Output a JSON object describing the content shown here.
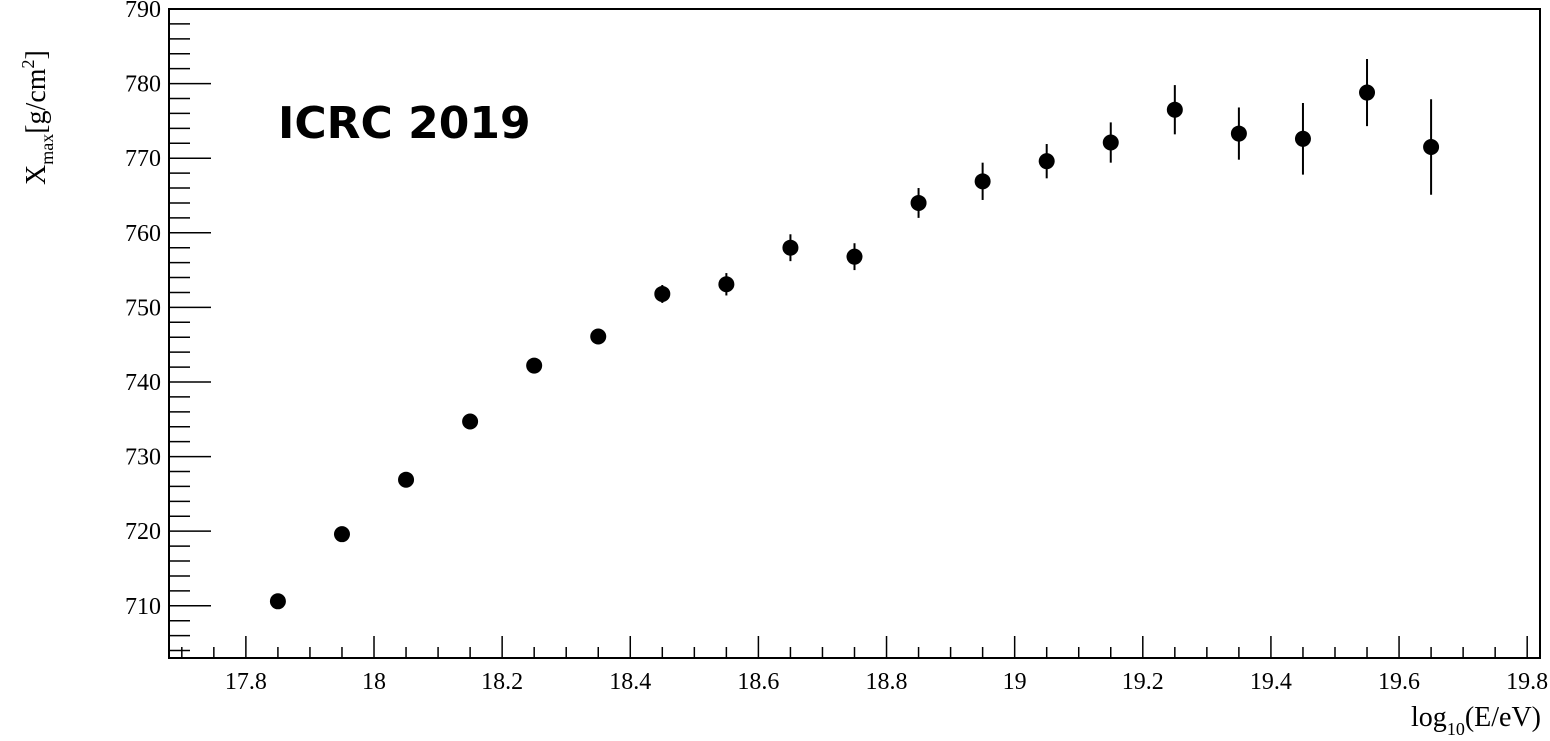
{
  "chart_data": {
    "type": "scatter",
    "annotation": "ICRC 2019",
    "xlabel": {
      "main": "log",
      "sub": "10",
      "rest": "(E/eV)"
    },
    "ylabel": {
      "main": "X",
      "sub": "max",
      "rest": "[g/cm",
      "sup": "2",
      "end": "]"
    },
    "xlim": [
      17.68,
      19.82
    ],
    "ylim": [
      703,
      790
    ],
    "xticks": [
      17.8,
      18.0,
      18.2,
      18.4,
      18.6,
      18.8,
      19.0,
      19.2,
      19.4,
      19.6,
      19.8
    ],
    "xtick_labels": [
      "17.8",
      "18",
      "18.2",
      "18.4",
      "18.6",
      "18.8",
      "19",
      "19.2",
      "19.4",
      "19.6",
      "19.8"
    ],
    "yticks": [
      710,
      720,
      730,
      740,
      750,
      760,
      770,
      780,
      790
    ],
    "ytick_labels": [
      "710",
      "720",
      "730",
      "740",
      "750",
      "760",
      "770",
      "780",
      "790"
    ],
    "grid": false,
    "marker_color": "#000000",
    "series": [
      {
        "x": [
          17.85,
          17.95,
          18.05,
          18.15,
          18.25,
          18.35,
          18.45,
          18.55,
          18.65,
          18.75,
          18.85,
          18.95,
          19.05,
          19.15,
          19.25,
          19.35,
          19.45,
          19.55,
          19.65
        ],
        "y": [
          710.6,
          719.6,
          726.9,
          734.7,
          742.2,
          746.1,
          751.8,
          753.1,
          758.0,
          756.8,
          764.0,
          766.9,
          769.6,
          772.1,
          776.5,
          773.3,
          772.6,
          778.8,
          771.5
        ],
        "yerr": [
          0.4,
          0.6,
          0.7,
          0.8,
          0.9,
          1.0,
          1.2,
          1.5,
          1.8,
          1.8,
          2.0,
          2.5,
          2.3,
          2.7,
          3.3,
          3.5,
          4.8,
          4.5,
          6.4
        ]
      }
    ]
  }
}
